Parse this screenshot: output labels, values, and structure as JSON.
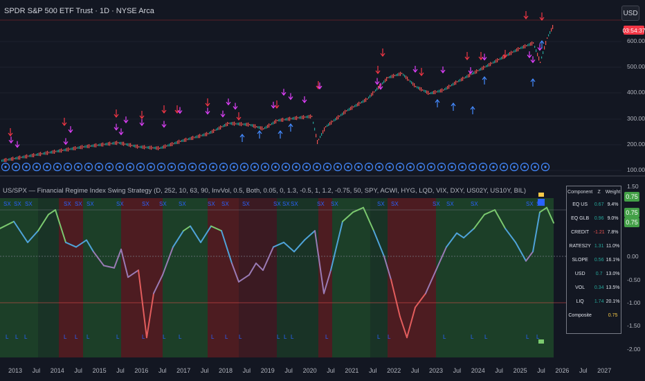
{
  "header": {
    "symbol_title": "SPDR S&P 500 ETF Trust · 1D · NYSE Arca",
    "currency_button": "USD",
    "countdown": "03:54:37"
  },
  "price_axis": {
    "labels": [
      "600.00",
      "500.00",
      "400.00",
      "300.00",
      "200.00",
      "100.00"
    ]
  },
  "indicator": {
    "title": "US/SPX — Financial Regime Index Swing Strategy (D, 252, 10, 63, 90, InvVol, 0.5, Both, 0.05, 0, 1.3, -0.5, 1, 1.2, -0.75, 50, SPY, ACWI, HYG, LQD, VIX, DXY, US02Y, US10Y, BIL)",
    "axis_labels": [
      "1.50",
      "1.00",
      "0.50",
      "0.00",
      "-0.50",
      "-1.00",
      "-1.50",
      "-2.00"
    ],
    "badges": [
      "0.75",
      "0.75",
      "0.75"
    ],
    "short_marker": "SX",
    "long_marker": "L"
  },
  "regime_table": {
    "headers": [
      "Component",
      "Z",
      "Weight"
    ],
    "rows": [
      {
        "name": "EQ US",
        "z": "0.67",
        "w": "9.4%"
      },
      {
        "name": "EQ GLB",
        "z": "0.96",
        "w": "9.0%"
      },
      {
        "name": "CREDIT",
        "z": "-1.21",
        "w": "7.8%"
      },
      {
        "name": "RATES2Y",
        "z": "1.31",
        "w": "11.0%"
      },
      {
        "name": "SLOPE",
        "z": "0.56",
        "w": "16.1%"
      },
      {
        "name": "USD",
        "z": "0.7",
        "w": "13.0%"
      },
      {
        "name": "VOL",
        "z": "0.34",
        "w": "13.5%"
      },
      {
        "name": "LIQ",
        "z": "1.74",
        "w": "20.1%"
      }
    ],
    "composite_label": "Composite",
    "composite_value": "0.75"
  },
  "time_axis": {
    "labels": [
      "2013",
      "Jul",
      "2014",
      "Jul",
      "2015",
      "Jul",
      "2016",
      "Jul",
      "2017",
      "Jul",
      "2018",
      "Jul",
      "2019",
      "Jul",
      "2020",
      "Jul",
      "2021",
      "Jul",
      "2022",
      "Jul",
      "2023",
      "Jul",
      "2024",
      "Jul",
      "2025",
      "Jul",
      "2026",
      "Jul",
      "2027"
    ]
  },
  "colors": {
    "background": "#131722",
    "up_candle": "#26a69a",
    "down_candle": "#ef5350",
    "regime_green": "#2e7d32",
    "regime_red": "#b71c1c",
    "signal_short": "#e040fb",
    "signal_long": "#2962ff",
    "arrow_down": "#f23645",
    "arrow_up": "#448aff"
  }
}
